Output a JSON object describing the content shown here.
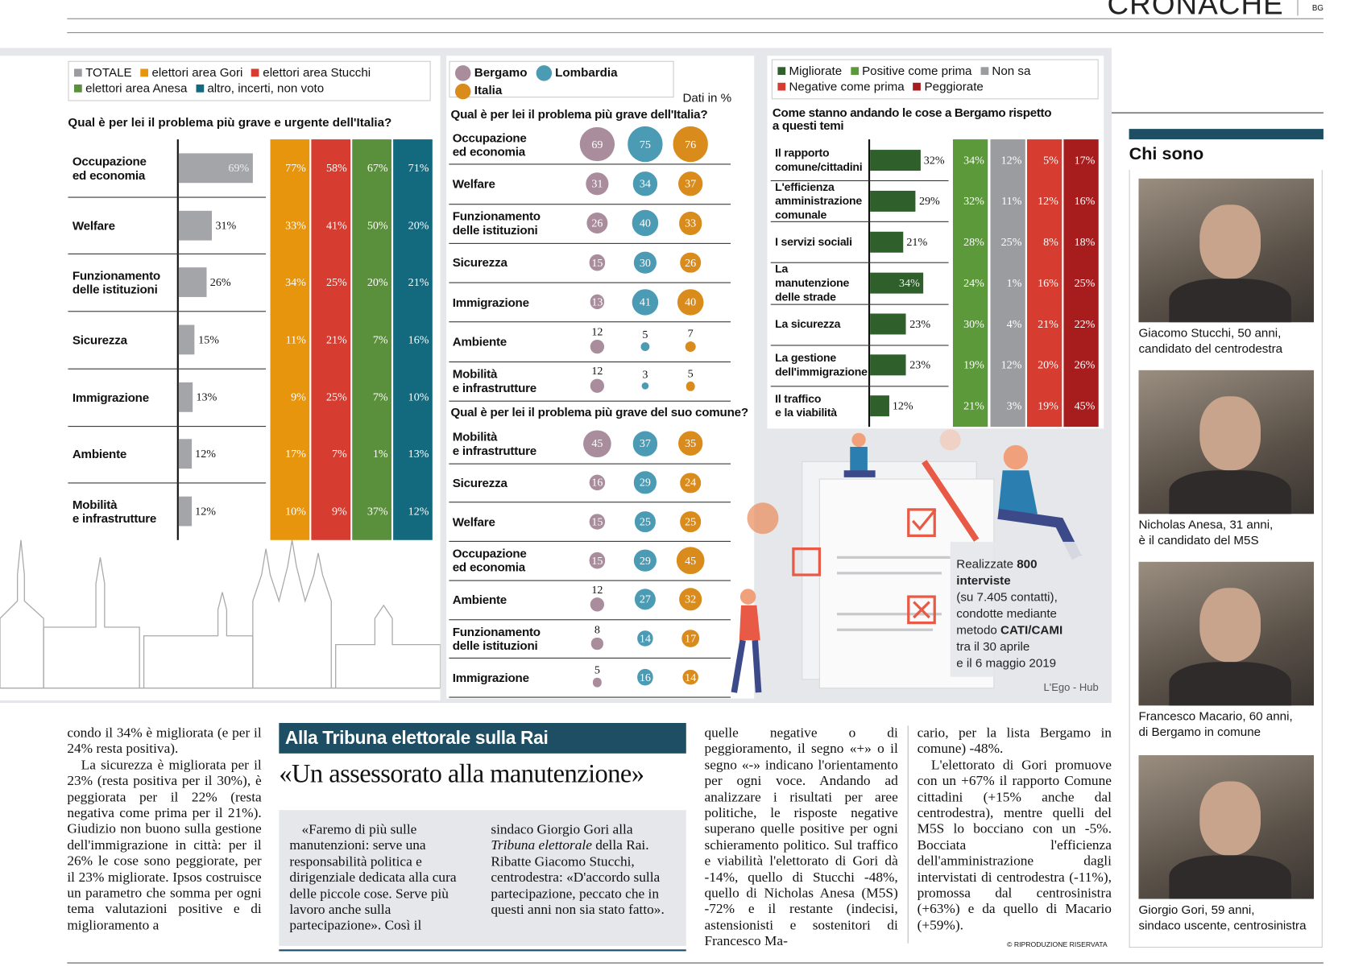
{
  "header": {
    "section": "CRONACHE",
    "edition": "BG"
  },
  "left_chart": {
    "type": "bar",
    "legend": [
      {
        "name": "TOTALE",
        "color": "#9b9c9f"
      },
      {
        "name": "elettori area Gori",
        "color": "#e8950e"
      },
      {
        "name": "elettori area Stucchi",
        "color": "#d63c30"
      },
      {
        "name": "elettori area Anesa",
        "color": "#5a8f3b"
      },
      {
        "name": "altro, incerti, non voto",
        "color": "#13697e"
      }
    ],
    "question": "Qual è per lei il problema più grave e urgente dell'Italia?",
    "categories": [
      "Occupazione\ned economia",
      "Welfare",
      "Funzionamento\ndelle istituzioni",
      "Sicurezza",
      "Immigrazione",
      "Ambiente",
      "Mobilità\ne infrastrutture"
    ],
    "values": [
      69,
      31,
      26,
      15,
      13,
      12,
      12
    ],
    "value_labels": [
      "69%",
      "31%",
      "26%",
      "15%",
      "13%",
      "12%",
      "12%"
    ],
    "color": "#a3a5a8",
    "columns": [
      [
        "77%",
        "33%",
        "34%",
        "11%",
        "9%",
        "17%",
        "10%"
      ],
      [
        "58%",
        "41%",
        "25%",
        "21%",
        "25%",
        "7%",
        "9%"
      ],
      [
        "67%",
        "50%",
        "20%",
        "7%",
        "7%",
        "1%",
        "37%"
      ],
      [
        "71%",
        "20%",
        "21%",
        "16%",
        "10%",
        "13%",
        "12%"
      ]
    ]
  },
  "middle_chart": {
    "type": "bubble",
    "legend": [
      {
        "name": "Bergamo",
        "color": "#a98d9d"
      },
      {
        "name": "Lombardia",
        "color": "#4b9bb5"
      },
      {
        "name": "Italia",
        "color": "#d98b1c"
      }
    ],
    "note": "Dati in %",
    "panels": [
      {
        "question": "Qual è per lei il problema più grave dell'Italia?",
        "rows": [
          {
            "label": "Occupazione\ned economia",
            "values": [
              69,
              75,
              76
            ]
          },
          {
            "label": "Welfare",
            "values": [
              31,
              34,
              37
            ]
          },
          {
            "label": "Funzionamento\ndelle istituzioni",
            "values": [
              26,
              40,
              33
            ]
          },
          {
            "label": "Sicurezza",
            "values": [
              15,
              30,
              26
            ]
          },
          {
            "label": "Immigrazione",
            "values": [
              13,
              41,
              40
            ]
          },
          {
            "label": "Ambiente",
            "values": [
              12,
              5,
              7
            ]
          },
          {
            "label": "Mobilità\ne infrastrutture",
            "values": [
              12,
              3,
              5
            ]
          }
        ]
      },
      {
        "question": "Qual è per lei il problema più grave del suo comune?",
        "rows": [
          {
            "label": "Mobilità\ne infrastrutture",
            "values": [
              45,
              37,
              35
            ]
          },
          {
            "label": "Sicurezza",
            "values": [
              16,
              29,
              24
            ]
          },
          {
            "label": "Welfare",
            "values": [
              15,
              25,
              25
            ]
          },
          {
            "label": "Occupazione\ned economia",
            "values": [
              15,
              29,
              45
            ]
          },
          {
            "label": "Ambiente",
            "values": [
              12,
              27,
              32
            ]
          },
          {
            "label": "Funzionamento\ndelle istituzioni",
            "values": [
              8,
              14,
              17
            ]
          },
          {
            "label": "Immigrazione",
            "values": [
              5,
              16,
              14
            ]
          }
        ]
      }
    ]
  },
  "right_chart": {
    "type": "bar",
    "legend": [
      {
        "name": "Migliorate",
        "color": "#2f5f2b"
      },
      {
        "name": "Positive come prima",
        "color": "#5b993a"
      },
      {
        "name": "Non sa",
        "color": "#9b9c9f"
      },
      {
        "name": "Negative come prima",
        "color": "#d63c30"
      },
      {
        "name": "Peggiorate",
        "color": "#a71d1d"
      }
    ],
    "question": "Come stanno andando le cose a Bergamo rispetto\na questi temi",
    "categories": [
      "Il rapporto\ncomune/cittadini",
      "L'efficienza\namministrazione\ncomunale",
      "I servizi sociali",
      "La manutenzione\ndelle strade",
      "La sicurezza",
      "La gestione\ndell'immigrazione",
      "Il traffico\ne la viabilità"
    ],
    "values": [
      32,
      29,
      21,
      34,
      23,
      23,
      12
    ],
    "value_labels": [
      "32%",
      "29%",
      "21%",
      "34%",
      "23%",
      "23%",
      "12%"
    ],
    "color": "#2f5f2b",
    "columns": [
      [
        "34%",
        "32%",
        "28%",
        "24%",
        "30%",
        "19%",
        "21%"
      ],
      [
        "12%",
        "11%",
        "25%",
        "1%",
        "4%",
        "12%",
        "3%"
      ],
      [
        "5%",
        "12%",
        "8%",
        "16%",
        "21%",
        "20%",
        "19%"
      ],
      [
        "17%",
        "16%",
        "18%",
        "25%",
        "22%",
        "26%",
        "45%"
      ]
    ]
  },
  "info": [
    "Realizzate",
    "800",
    "interviste",
    "(su 7.405 contatti),",
    "condotte mediante",
    "metodo",
    "CATI/CAMI",
    "tra il 30 aprile",
    "e il 6 maggio 2019"
  ],
  "credit": "L'Ego - Hub",
  "sidebar": {
    "title": "Chi sono",
    "people": [
      "Giacomo Stucchi, 50 anni,\ncandidato del centrodestra",
      "Nicholas Anesa, 31 anni,\nè il candidato del M5S",
      "Francesco Macario, 60 anni,\ndi Bergamo in comune",
      "Giorgio Gori, 59 anni,\nsindaco uscente, centrosinistra"
    ]
  },
  "article": {
    "col1": [
      "condo il 34% è migliorata (e per il 24% resta positiva).",
      "La sicurezza è migliorata per il 23% (resta positiva per il 30%), è peggiorata per il 22% (resta negativa come prima per il 21%). Giudizio non buono sulla gestione dell'immigrazione in città: per il 26% le cose sono peggiorate, per il 23% migliorate. Ipsos costruisce un parametro che somma per ogni tema valutazioni positive e di miglioramento a"
    ],
    "col3": [
      "quelle negative o di peggioramento, il segno «+» o il segno «-» indicano l'orientamento per ogni voce. Andando ad analizzare i risultati per aree politiche, le risposte negative superano quelle positive per ogni schieramento politico. Sul traffico e viabilità l'elettorato di Gori dà -14%, quello di Stucchi -48%, quello di Nicholas Anesa (M5S) -72% e il restante (indecisi, astensionisti e sostenitori di Francesco Ma-"
    ],
    "col4": [
      "cario, per la lista Bergamo in comune) -48%.",
      "L'elettorato di Gori promuove con un +67% il rapporto Comune cittadini (+15% anche dal centrodestra), mentre quelli del M5S lo bocciano con un -5%. Bocciata l'efficienza dell'amministrazione dagli intervistati di centrodestra (-11%), promossa dal centrosinistra (+63%) e da quello di Macario (+59%)."
    ],
    "copyright": "© RIPRODUZIONE RISERVATA"
  },
  "box": {
    "kicker": "Alla Tribuna elettorale sulla Rai",
    "headline": "«Un assessorato alla manutenzione»",
    "left": "«Faremo di più sulle manutenzioni: serve una responsabilità politica e dirigenziale dedicata alla cura delle piccole cose. Serve più lavoro anche sulla partecipazione». Così il",
    "right": [
      "sindaco Giorgio Gori alla ",
      "Tribuna elettorale",
      " della Rai. Ribatte Giacomo Stucchi, centrodestra: «D'accordo sulla partecipazione, peccato che in questi anni non sia stato fatto»."
    ]
  }
}
